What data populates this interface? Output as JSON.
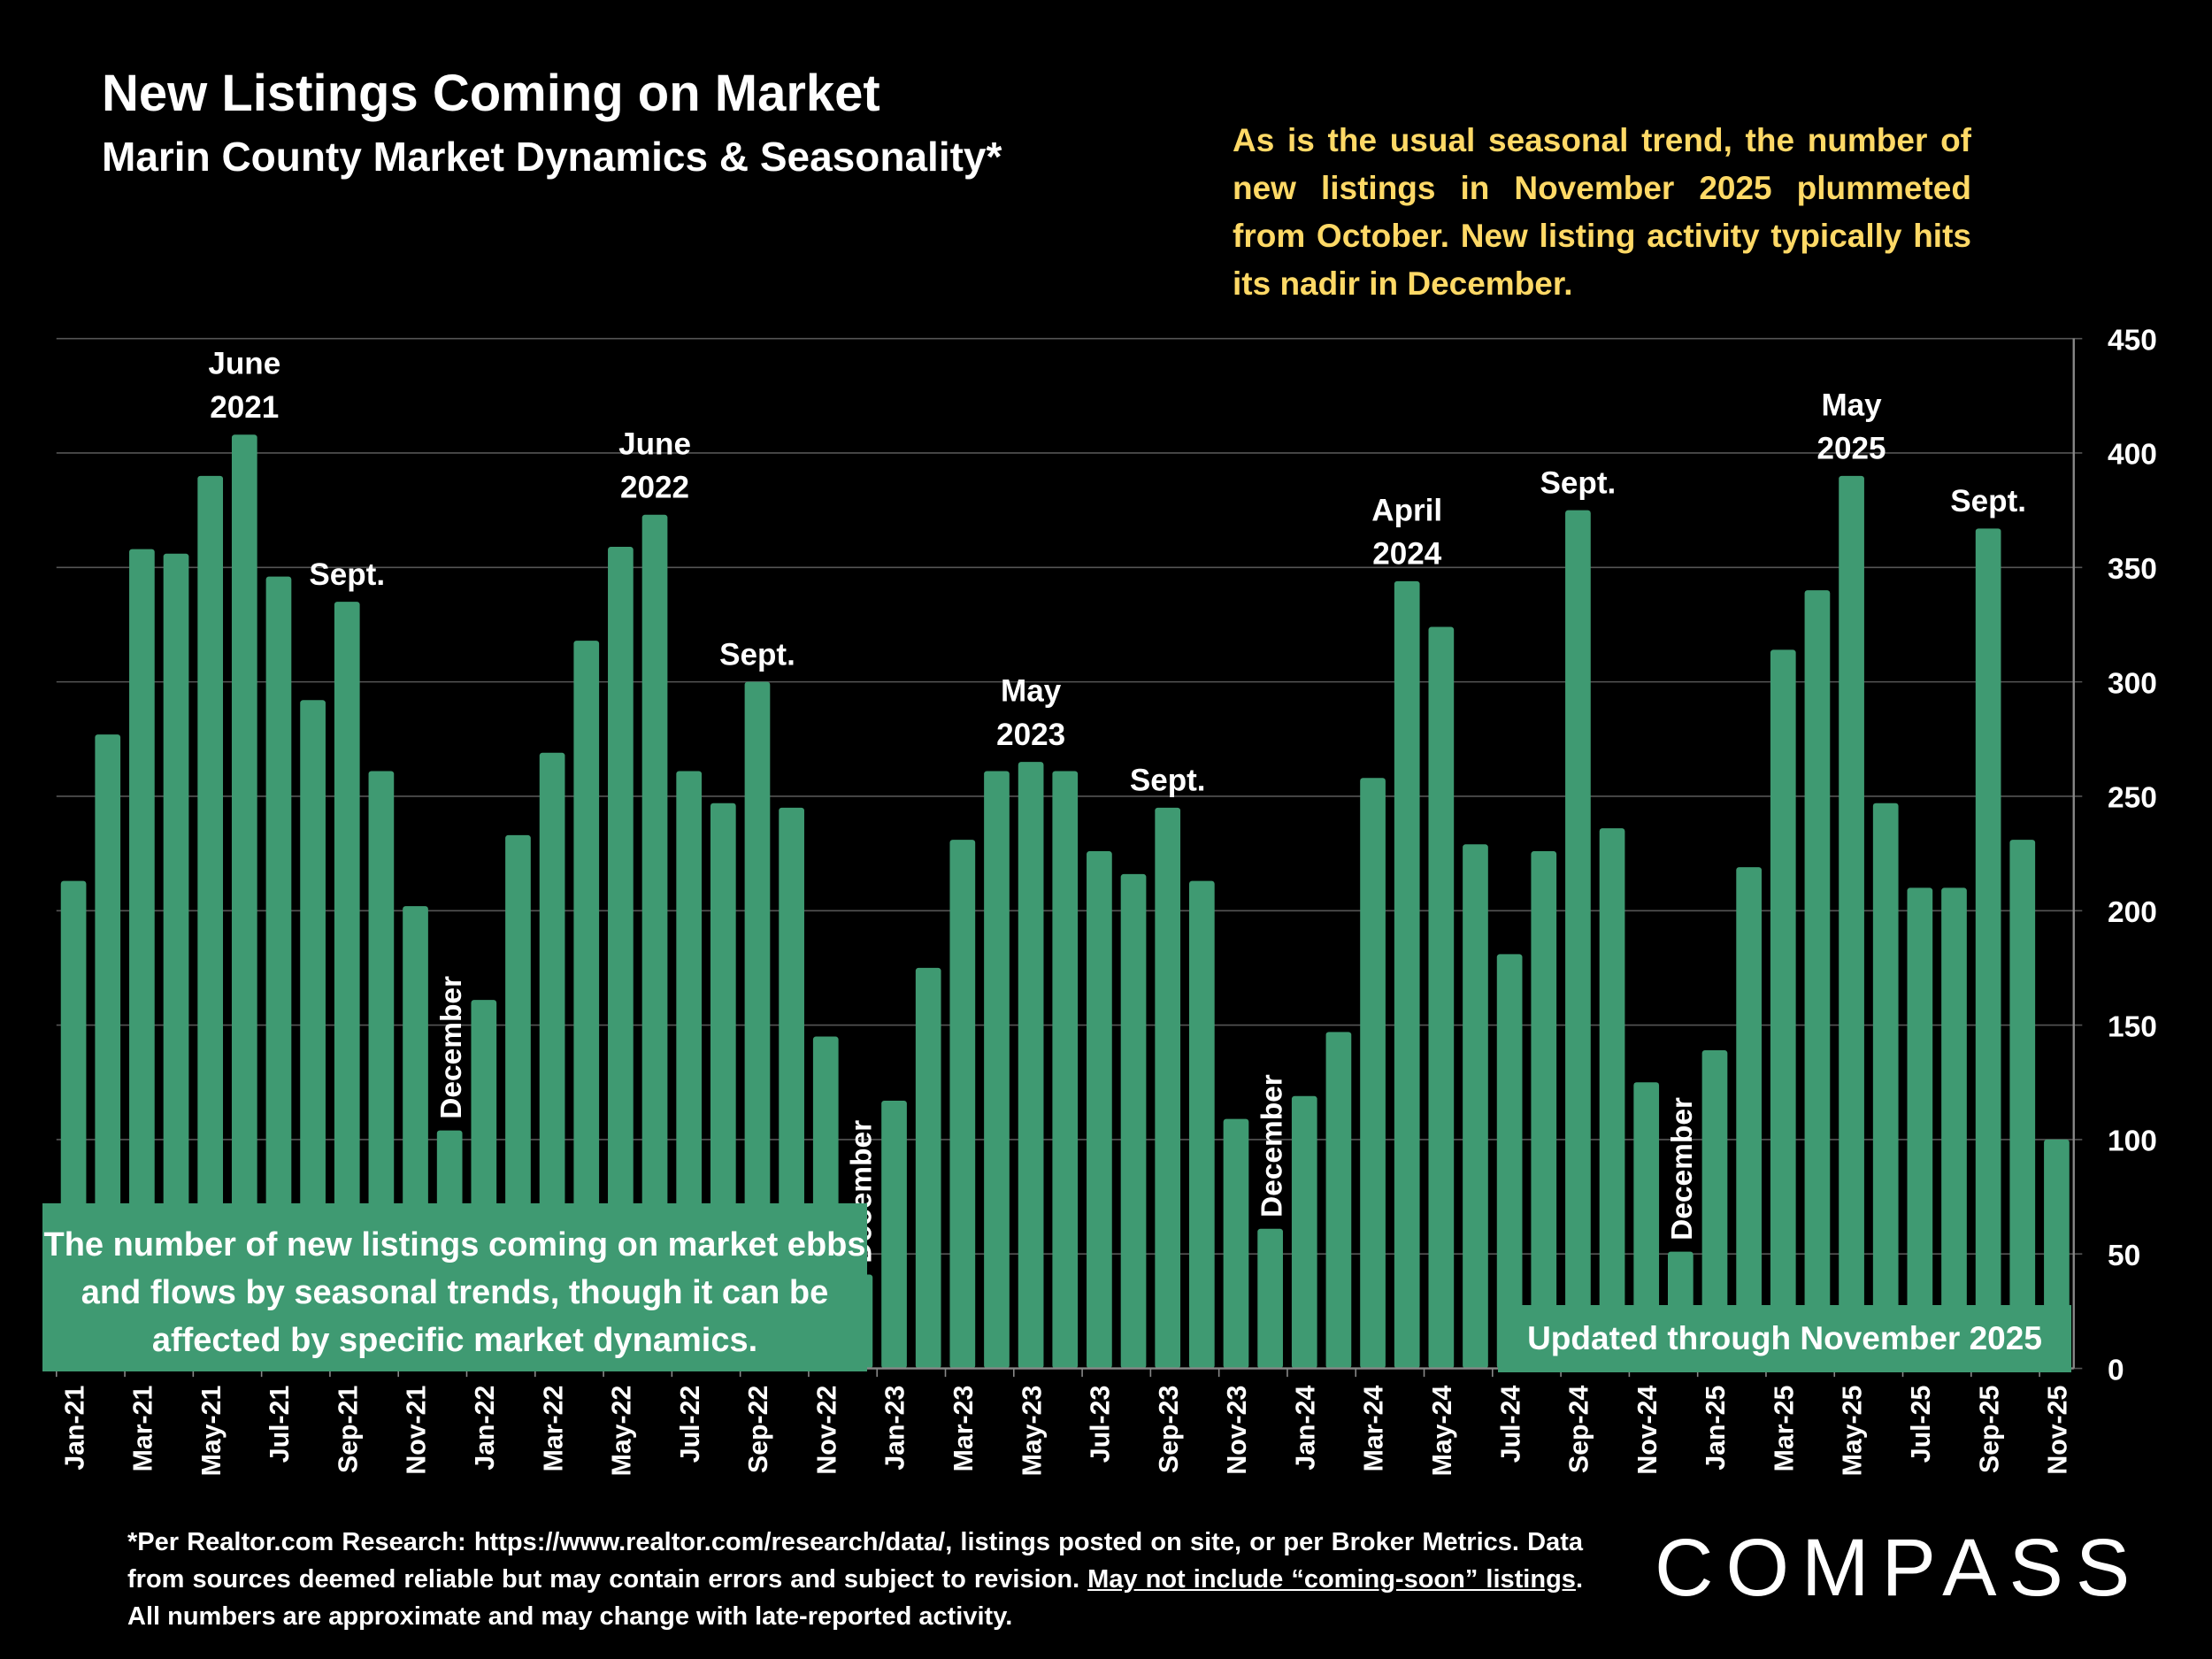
{
  "header": {
    "title": "New Listings Coming on Market",
    "subtitle": "Marin County Market Dynamics & Seasonality*"
  },
  "note": "As is the usual seasonal trend, the number of new listings in November 2025 plummeted from October.  New listing activity typically hits its nadir in December.",
  "callout_left": "The number of new listings coming on market ebbs and flows by seasonal trends, though it can be affected by specific market dynamics.",
  "callout_right": "Updated through November 2025",
  "footnote": {
    "part1": "*Per Realtor.com Research:  https://www.realtor.com/research/data/, listings posted on site, or per Broker Metrics. Data from sources deemed reliable but may contain errors and subject to revision. ",
    "underlined": "May not include “coming-soon” listings",
    "part2": ". All numbers are approximate and may change with late-reported activity."
  },
  "logo": "COMPASS",
  "colors": {
    "bar": "#3f9a72",
    "note": "#ffd966",
    "background": "#000000",
    "grid": "#555555"
  },
  "chart_data": {
    "type": "bar",
    "title": "New Listings Coming on Market",
    "xlabel": "",
    "ylabel": "",
    "ylim": [
      0,
      450
    ],
    "yticks": [
      0,
      50,
      100,
      150,
      200,
      250,
      300,
      350,
      400,
      450
    ],
    "y_axis_side": "right",
    "grid": true,
    "categories": [
      "Jan-21",
      "Feb-21",
      "Mar-21",
      "Apr-21",
      "May-21",
      "Jun-21",
      "Jul-21",
      "Aug-21",
      "Sep-21",
      "Oct-21",
      "Nov-21",
      "Dec-21",
      "Jan-22",
      "Feb-22",
      "Mar-22",
      "Apr-22",
      "May-22",
      "Jun-22",
      "Jul-22",
      "Aug-22",
      "Sep-22",
      "Oct-22",
      "Nov-22",
      "Dec-22",
      "Jan-23",
      "Feb-23",
      "Mar-23",
      "Apr-23",
      "May-23",
      "Jun-23",
      "Jul-23",
      "Aug-23",
      "Sep-23",
      "Oct-23",
      "Nov-23",
      "Dec-23",
      "Jan-24",
      "Feb-24",
      "Mar-24",
      "Apr-24",
      "May-24",
      "Jun-24",
      "Jul-24",
      "Aug-24",
      "Sep-24",
      "Oct-24",
      "Nov-24",
      "Dec-24",
      "Jan-25",
      "Feb-25",
      "Mar-25",
      "Apr-25",
      "May-25",
      "Jun-25",
      "Jul-25",
      "Aug-25",
      "Sep-25",
      "Oct-25",
      "Nov-25"
    ],
    "values": [
      213,
      277,
      358,
      356,
      390,
      408,
      346,
      292,
      335,
      261,
      202,
      104,
      161,
      233,
      269,
      318,
      359,
      373,
      261,
      247,
      300,
      245,
      145,
      41,
      117,
      175,
      231,
      261,
      265,
      261,
      226,
      216,
      245,
      213,
      109,
      61,
      119,
      147,
      258,
      344,
      324,
      229,
      181,
      226,
      375,
      236,
      125,
      51,
      139,
      219,
      314,
      340,
      390,
      247,
      210,
      210,
      367,
      231,
      100
    ],
    "annotations": [
      {
        "category": "Jun-21",
        "lines": [
          "June",
          "2021"
        ]
      },
      {
        "category": "Sep-21",
        "lines": [
          "Sept."
        ]
      },
      {
        "category": "Dec-21",
        "lines": [
          "December"
        ],
        "rotated": true
      },
      {
        "category": "Jun-22",
        "lines": [
          "June",
          "2022"
        ]
      },
      {
        "category": "Sep-22",
        "lines": [
          "Sept."
        ]
      },
      {
        "category": "Dec-22",
        "lines": [
          "December"
        ],
        "rotated": true
      },
      {
        "category": "May-23",
        "lines": [
          "May",
          "2023"
        ]
      },
      {
        "category": "Sep-23",
        "lines": [
          "Sept."
        ]
      },
      {
        "category": "Dec-23",
        "lines": [
          "December"
        ],
        "rotated": true
      },
      {
        "category": "Apr-24",
        "lines": [
          "April",
          "2024"
        ]
      },
      {
        "category": "Sep-24",
        "lines": [
          "Sept."
        ]
      },
      {
        "category": "Dec-24",
        "lines": [
          "December"
        ],
        "rotated": true
      },
      {
        "category": "May-25",
        "lines": [
          "May",
          "2025"
        ]
      },
      {
        "category": "Sep-25",
        "lines": [
          "Sept."
        ]
      }
    ]
  }
}
